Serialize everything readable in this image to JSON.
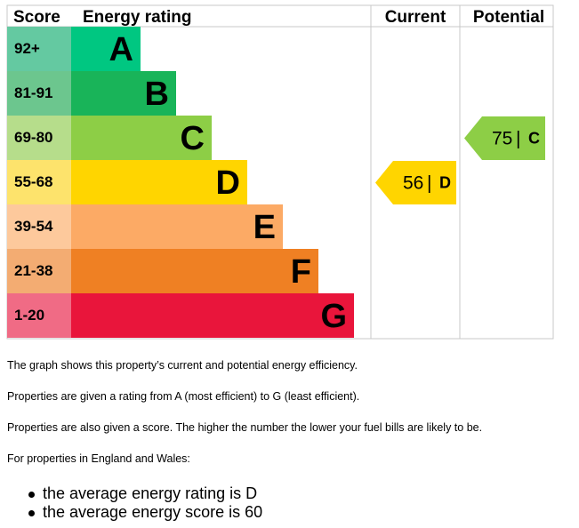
{
  "chart_data": {
    "type": "table",
    "headers": {
      "score": "Score",
      "rating": "Energy rating",
      "current": "Current",
      "potential": "Potential"
    },
    "bands": [
      {
        "range": "92+",
        "letter": "A",
        "color": "#00c781",
        "score_bg": "#64c9a1"
      },
      {
        "range": "81-91",
        "letter": "B",
        "color": "#19b459",
        "score_bg": "#6cc68e"
      },
      {
        "range": "69-80",
        "letter": "C",
        "color": "#8dce46",
        "score_bg": "#b6dd8b"
      },
      {
        "range": "55-68",
        "letter": "D",
        "color": "#ffd500",
        "score_bg": "#fde36c"
      },
      {
        "range": "39-54",
        "letter": "E",
        "color": "#fcaa65",
        "score_bg": "#fdc99c"
      },
      {
        "range": "21-38",
        "letter": "F",
        "color": "#ef8023",
        "score_bg": "#f3ac72"
      },
      {
        "range": "1-20",
        "letter": "G",
        "color": "#e9153b",
        "score_bg": "#f06b85"
      }
    ],
    "current": {
      "score": "56",
      "letter": "D",
      "color": "#ffd500"
    },
    "potential": {
      "score": "75",
      "letter": "C",
      "color": "#8dce46"
    },
    "separator": "|"
  },
  "text": {
    "p1": "The graph shows this property’s current and potential energy efficiency.",
    "p2": "Properties are given a rating from A (most efficient) to G (least efficient).",
    "p3": "Properties are also given a score. The higher the number the lower your fuel bills are likely to be.",
    "p4": "For properties in England and Wales:",
    "bullets": [
      "the average energy rating is D",
      "the average energy score is 60"
    ]
  }
}
